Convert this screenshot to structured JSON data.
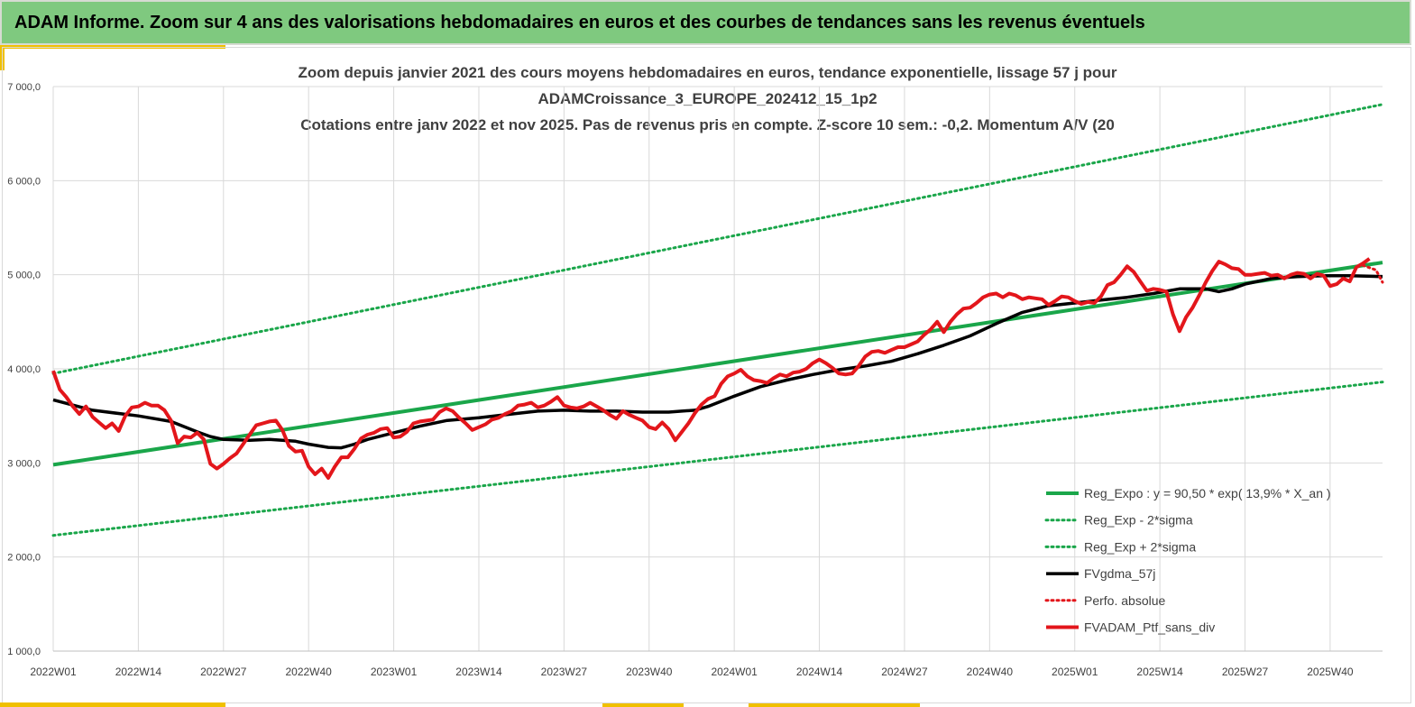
{
  "header": {
    "title": "ADAM Informe. Zoom sur 4 ans des valorisations hebdomadaires en euros et des courbes de tendances sans les revenus éventuels"
  },
  "chart_data": {
    "type": "line",
    "title_lines": [
      "Zoom depuis janvier 2021 des cours moyens hebdomadaires  en euros, tendance exponentielle, lissage 57 j pour",
      "ADAMCroissance_3_EUROPE_202412_15_1p2",
      "Cotations  entre janv 2022 et nov 2025. Pas de revenus pris en compte. Z-score 10 sem.: -0,2. Momentum A/V (20"
    ],
    "ylim": [
      1000,
      7000
    ],
    "yticks": [
      "1 000,0",
      "2 000,0",
      "3 000,0",
      "4 000,0",
      "5 000,0",
      "6 000,0",
      "7 000,0"
    ],
    "ytick_values": [
      1000,
      2000,
      3000,
      4000,
      5000,
      6000,
      7000
    ],
    "x_week_range": [
      0,
      203
    ],
    "xticks": [
      "2022W01",
      "2022W14",
      "2022W27",
      "2022W40",
      "2023W01",
      "2023W14",
      "2023W27",
      "2023W40",
      "2024W01",
      "2024W14",
      "2024W27",
      "2024W40",
      "2025W01",
      "2025W14",
      "2025W27",
      "2025W40"
    ],
    "grid": true,
    "legend_position": "bottom-right",
    "series": [
      {
        "name": "Reg_Expo : y = 90,50 * exp( 13,9% *  X_an )",
        "color": "#1aa64a",
        "style": "solid",
        "points": [
          [
            0,
            2980
          ],
          [
            203,
            5130
          ]
        ]
      },
      {
        "name": "Reg_Exp - 2*sigma",
        "color": "#1aa64a",
        "style": "dotted",
        "points": [
          [
            0,
            2230
          ],
          [
            203,
            3860
          ]
        ]
      },
      {
        "name": "Reg_Exp + 2*sigma",
        "color": "#1aa64a",
        "style": "dotted",
        "points": [
          [
            0,
            3950
          ],
          [
            203,
            6810
          ]
        ]
      },
      {
        "name": "FVgdma_57j",
        "color": "#000000",
        "style": "solid",
        "points": [
          [
            0,
            3670
          ],
          [
            6,
            3560
          ],
          [
            13,
            3500
          ],
          [
            18,
            3440
          ],
          [
            22,
            3330
          ],
          [
            24,
            3280
          ],
          [
            26,
            3250
          ],
          [
            30,
            3240
          ],
          [
            33,
            3250
          ],
          [
            37,
            3230
          ],
          [
            39,
            3200
          ],
          [
            42,
            3165
          ],
          [
            44,
            3160
          ],
          [
            46,
            3200
          ],
          [
            48,
            3250
          ],
          [
            52,
            3320
          ],
          [
            56,
            3390
          ],
          [
            60,
            3450
          ],
          [
            65,
            3480
          ],
          [
            70,
            3520
          ],
          [
            74,
            3550
          ],
          [
            78,
            3560
          ],
          [
            82,
            3550
          ],
          [
            86,
            3550
          ],
          [
            90,
            3540
          ],
          [
            94,
            3540
          ],
          [
            96,
            3550
          ],
          [
            98,
            3560
          ],
          [
            100,
            3600
          ],
          [
            104,
            3710
          ],
          [
            108,
            3810
          ],
          [
            112,
            3880
          ],
          [
            116,
            3940
          ],
          [
            120,
            3990
          ],
          [
            124,
            4030
          ],
          [
            128,
            4080
          ],
          [
            132,
            4160
          ],
          [
            136,
            4250
          ],
          [
            140,
            4350
          ],
          [
            144,
            4480
          ],
          [
            148,
            4600
          ],
          [
            152,
            4670
          ],
          [
            156,
            4700
          ],
          [
            160,
            4730
          ],
          [
            164,
            4760
          ],
          [
            168,
            4800
          ],
          [
            172,
            4850
          ],
          [
            176,
            4850
          ],
          [
            178,
            4820
          ],
          [
            180,
            4850
          ],
          [
            182,
            4900
          ],
          [
            186,
            4960
          ],
          [
            190,
            4980
          ],
          [
            194,
            4990
          ],
          [
            198,
            4990
          ],
          [
            203,
            4980
          ]
        ]
      },
      {
        "name": "Perfo. absolue",
        "color": "#e3161b",
        "style": "dotted",
        "points": [
          [
            200,
            5100
          ],
          [
            202,
            5050
          ],
          [
            203,
            4920
          ]
        ]
      },
      {
        "name": "FVADAM_Ptf_sans_div",
        "color": "#e3161b",
        "style": "solid",
        "points": [
          [
            0,
            3980
          ],
          [
            1,
            3780
          ],
          [
            2,
            3700
          ],
          [
            3,
            3600
          ],
          [
            4,
            3520
          ],
          [
            5,
            3600
          ],
          [
            6,
            3490
          ],
          [
            7,
            3430
          ],
          [
            8,
            3370
          ],
          [
            9,
            3420
          ],
          [
            10,
            3340
          ],
          [
            11,
            3500
          ],
          [
            12,
            3590
          ],
          [
            13,
            3600
          ],
          [
            14,
            3640
          ],
          [
            15,
            3610
          ],
          [
            16,
            3610
          ],
          [
            17,
            3560
          ],
          [
            18,
            3450
          ],
          [
            19,
            3210
          ],
          [
            20,
            3280
          ],
          [
            21,
            3270
          ],
          [
            22,
            3320
          ],
          [
            23,
            3250
          ],
          [
            24,
            2990
          ],
          [
            25,
            2940
          ],
          [
            26,
            2990
          ],
          [
            27,
            3050
          ],
          [
            28,
            3100
          ],
          [
            29,
            3200
          ],
          [
            30,
            3300
          ],
          [
            31,
            3400
          ],
          [
            32,
            3420
          ],
          [
            33,
            3440
          ],
          [
            34,
            3450
          ],
          [
            35,
            3350
          ],
          [
            36,
            3180
          ],
          [
            37,
            3120
          ],
          [
            38,
            3130
          ],
          [
            39,
            2960
          ],
          [
            40,
            2880
          ],
          [
            41,
            2940
          ],
          [
            42,
            2840
          ],
          [
            43,
            2960
          ],
          [
            44,
            3060
          ],
          [
            45,
            3060
          ],
          [
            46,
            3150
          ],
          [
            47,
            3260
          ],
          [
            48,
            3300
          ],
          [
            49,
            3320
          ],
          [
            50,
            3360
          ],
          [
            51,
            3370
          ],
          [
            52,
            3270
          ],
          [
            53,
            3280
          ],
          [
            54,
            3330
          ],
          [
            55,
            3420
          ],
          [
            56,
            3440
          ],
          [
            57,
            3450
          ],
          [
            58,
            3460
          ],
          [
            59,
            3540
          ],
          [
            60,
            3580
          ],
          [
            61,
            3550
          ],
          [
            62,
            3480
          ],
          [
            63,
            3420
          ],
          [
            64,
            3350
          ],
          [
            65,
            3380
          ],
          [
            66,
            3410
          ],
          [
            67,
            3460
          ],
          [
            68,
            3480
          ],
          [
            69,
            3520
          ],
          [
            70,
            3550
          ],
          [
            71,
            3610
          ],
          [
            72,
            3620
          ],
          [
            73,
            3640
          ],
          [
            74,
            3590
          ],
          [
            75,
            3610
          ],
          [
            76,
            3650
          ],
          [
            77,
            3700
          ],
          [
            78,
            3610
          ],
          [
            79,
            3590
          ],
          [
            80,
            3580
          ],
          [
            81,
            3600
          ],
          [
            82,
            3640
          ],
          [
            83,
            3600
          ],
          [
            84,
            3560
          ],
          [
            85,
            3510
          ],
          [
            86,
            3470
          ],
          [
            87,
            3550
          ],
          [
            88,
            3510
          ],
          [
            89,
            3480
          ],
          [
            90,
            3450
          ],
          [
            91,
            3380
          ],
          [
            92,
            3360
          ],
          [
            93,
            3430
          ],
          [
            94,
            3360
          ],
          [
            95,
            3240
          ],
          [
            96,
            3330
          ],
          [
            97,
            3420
          ],
          [
            98,
            3530
          ],
          [
            99,
            3620
          ],
          [
            100,
            3680
          ],
          [
            101,
            3710
          ],
          [
            102,
            3840
          ],
          [
            103,
            3920
          ],
          [
            104,
            3950
          ],
          [
            105,
            3990
          ],
          [
            106,
            3920
          ],
          [
            107,
            3880
          ],
          [
            108,
            3870
          ],
          [
            109,
            3850
          ],
          [
            110,
            3900
          ],
          [
            111,
            3940
          ],
          [
            112,
            3920
          ],
          [
            113,
            3960
          ],
          [
            114,
            3970
          ],
          [
            115,
            4000
          ],
          [
            116,
            4060
          ],
          [
            117,
            4100
          ],
          [
            118,
            4060
          ],
          [
            119,
            4010
          ],
          [
            120,
            3950
          ],
          [
            121,
            3940
          ],
          [
            122,
            3950
          ],
          [
            123,
            4030
          ],
          [
            124,
            4130
          ],
          [
            125,
            4180
          ],
          [
            126,
            4190
          ],
          [
            127,
            4170
          ],
          [
            128,
            4200
          ],
          [
            129,
            4230
          ],
          [
            130,
            4230
          ],
          [
            131,
            4260
          ],
          [
            132,
            4290
          ],
          [
            133,
            4360
          ],
          [
            134,
            4420
          ],
          [
            135,
            4500
          ],
          [
            136,
            4390
          ],
          [
            137,
            4500
          ],
          [
            138,
            4580
          ],
          [
            139,
            4640
          ],
          [
            140,
            4650
          ],
          [
            141,
            4700
          ],
          [
            142,
            4760
          ],
          [
            143,
            4790
          ],
          [
            144,
            4800
          ],
          [
            145,
            4760
          ],
          [
            146,
            4800
          ],
          [
            147,
            4780
          ],
          [
            148,
            4740
          ],
          [
            149,
            4760
          ],
          [
            150,
            4750
          ],
          [
            151,
            4740
          ],
          [
            152,
            4680
          ],
          [
            153,
            4720
          ],
          [
            154,
            4770
          ],
          [
            155,
            4760
          ],
          [
            156,
            4720
          ],
          [
            157,
            4690
          ],
          [
            158,
            4710
          ],
          [
            159,
            4700
          ],
          [
            160,
            4770
          ],
          [
            161,
            4890
          ],
          [
            162,
            4920
          ],
          [
            163,
            5000
          ],
          [
            164,
            5090
          ],
          [
            165,
            5030
          ],
          [
            166,
            4930
          ],
          [
            167,
            4830
          ],
          [
            168,
            4850
          ],
          [
            169,
            4840
          ],
          [
            170,
            4820
          ],
          [
            171,
            4580
          ],
          [
            172,
            4400
          ],
          [
            173,
            4550
          ],
          [
            174,
            4650
          ],
          [
            175,
            4780
          ],
          [
            176,
            4920
          ],
          [
            177,
            5040
          ],
          [
            178,
            5140
          ],
          [
            179,
            5110
          ],
          [
            180,
            5070
          ],
          [
            181,
            5060
          ],
          [
            182,
            5000
          ],
          [
            183,
            5000
          ],
          [
            184,
            5010
          ],
          [
            185,
            5020
          ],
          [
            186,
            4990
          ],
          [
            187,
            5000
          ],
          [
            188,
            4960
          ],
          [
            189,
            5000
          ],
          [
            190,
            5020
          ],
          [
            191,
            5010
          ],
          [
            192,
            4960
          ],
          [
            193,
            5010
          ],
          [
            194,
            4990
          ],
          [
            195,
            4880
          ],
          [
            196,
            4900
          ],
          [
            197,
            4960
          ],
          [
            198,
            4930
          ],
          [
            199,
            5080
          ],
          [
            200,
            5120
          ],
          [
            201,
            5170
          ]
        ]
      }
    ]
  }
}
